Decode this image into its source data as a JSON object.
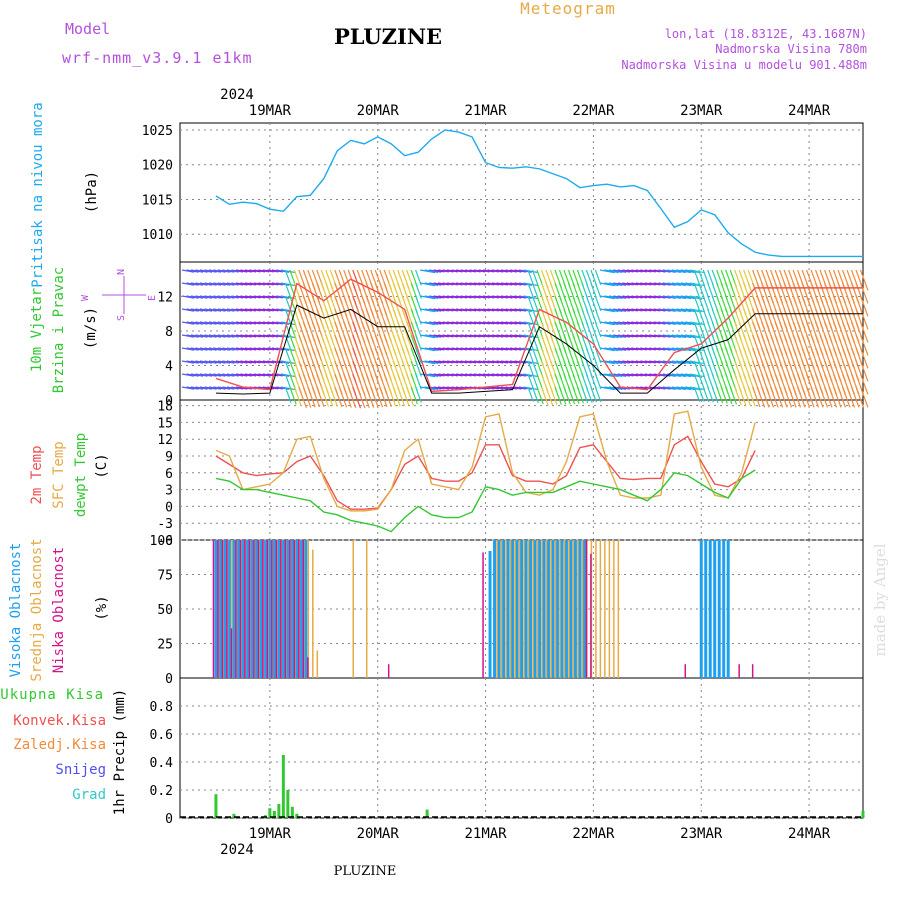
{
  "header": {
    "model_label": "Model",
    "model_name": "wrf-nmm_v3.9.1  e1km",
    "station_title": "PLUZINE",
    "meteogram_label": "Meteogram",
    "coords": "lon,lat (18.8312E, 43.1687N)",
    "elevation": "Nadmorska Visina 780m",
    "model_elevation": "Nadmorska Visina u modelu 901.488m"
  },
  "footer": {
    "station": "PLUZINE",
    "credit": "made by Angel"
  },
  "colors": {
    "pressure": "#1eaaf0",
    "temp2m": "#f05050",
    "sfc_temp": "#e6aa46",
    "dewpoint": "#32c832",
    "cloud_high": "#1ea0f0",
    "cloud_mid": "#e6aa46",
    "cloud_low": "#d2148c",
    "precip_total": "#32c832",
    "precip_convective": "#f05050",
    "precip_frozen": "#f08c3c",
    "snow": "#5050f0",
    "graupel": "#32c8c8",
    "purple_label": "#b450dc"
  },
  "chart_data": [
    {
      "id": "pressure",
      "type": "line",
      "ylabel": "Pritisak na nivou mora",
      "unit": "(hPa)",
      "ylim": [
        1006,
        1026
      ],
      "yticks": [
        1010,
        1015,
        1020,
        1025
      ],
      "grid": true,
      "x_hours": [
        0,
        3,
        6,
        9,
        12,
        15,
        18,
        21,
        24,
        27,
        30,
        33,
        36,
        39,
        42,
        45,
        48,
        51,
        54,
        57,
        60,
        63,
        66,
        69,
        72,
        75,
        78,
        81,
        84,
        87,
        90,
        93,
        96,
        99,
        102,
        105,
        108,
        111,
        114,
        117,
        120,
        123,
        126,
        129,
        132,
        135,
        138,
        141,
        144
      ],
      "series": [
        {
          "name": "Pritisak na nivou mora",
          "values": [
            1015.5,
            1014.3,
            1014.6,
            1014.4,
            1013.6,
            1013.3,
            1015.4,
            1015.6,
            1018.0,
            1022.0,
            1023.5,
            1023.0,
            1024.0,
            1023.0,
            1021.3,
            1021.8,
            1023.7,
            1025.0,
            1024.7,
            1024.0,
            1020.3,
            1019.6,
            1019.5,
            1019.7,
            1019.4,
            1018.7,
            1018.0,
            1016.7,
            1017.0,
            1017.2,
            1016.8,
            1017.0,
            1016.3,
            1013.7,
            1011.0,
            1011.8,
            1013.5,
            1012.8,
            1010.2,
            1008.6,
            1007.4,
            1007.0,
            1006.8,
            1006.8,
            1006.8,
            1006.8,
            1006.8,
            1006.8,
            1006.8
          ]
        }
      ]
    },
    {
      "id": "wind",
      "type": "line",
      "ylabel": "10m Vjetar",
      "ylabel2": "Brzina i Pravac",
      "unit": "(m/s)",
      "ylim": [
        0,
        16
      ],
      "yticks": [
        0,
        4,
        8,
        12
      ],
      "grid": true,
      "compass": {
        "n": "N",
        "s": "S",
        "e": "E",
        "w": "W"
      },
      "x_hours": [
        0,
        6,
        12,
        18,
        24,
        30,
        36,
        42,
        48,
        54,
        60,
        66,
        72,
        78,
        84,
        90,
        96,
        102,
        108,
        114,
        120,
        126,
        132,
        138,
        144
      ],
      "series": [
        {
          "name": "10m brzina vjetra",
          "values": [
            2.5,
            1.5,
            1.2,
            13.5,
            11.5,
            14.0,
            12.5,
            10.5,
            1.0,
            1.2,
            1.5,
            1.8,
            10.5,
            9.0,
            6.5,
            1.5,
            1.2,
            5.5,
            6.5,
            9.5,
            13.0,
            13.0,
            13.0,
            13.0,
            13.0
          ]
        },
        {
          "name": "10m udari vjetra",
          "values": [
            0.8,
            0.7,
            0.8,
            11.0,
            9.5,
            10.5,
            8.5,
            8.5,
            0.8,
            0.8,
            1.0,
            1.2,
            8.5,
            6.5,
            4.0,
            0.8,
            0.8,
            3.5,
            6.0,
            7.0,
            10.0,
            10.0,
            10.0,
            10.0,
            10.0
          ]
        }
      ]
    },
    {
      "id": "temperature",
      "type": "line",
      "ylabel": "2m Temp",
      "ylabel2": "SFC Temp",
      "ylabel3": "dewpt Temp",
      "unit": "(C)",
      "ylim": [
        -6,
        19
      ],
      "yticks": [
        -6,
        -3,
        0,
        3,
        6,
        9,
        12,
        15,
        18
      ],
      "grid": true,
      "x_hours": [
        0,
        3,
        6,
        9,
        12,
        15,
        18,
        21,
        24,
        27,
        30,
        33,
        36,
        39,
        42,
        45,
        48,
        51,
        54,
        57,
        60,
        63,
        66,
        69,
        72,
        75,
        78,
        81,
        84,
        87,
        90,
        93,
        96,
        99,
        102,
        105,
        108,
        111,
        114,
        117,
        120
      ],
      "series": [
        {
          "name": "2m Temp",
          "values": [
            9,
            7.5,
            6,
            5.5,
            5.8,
            6,
            8,
            9,
            5.5,
            1,
            -0.5,
            -0.5,
            -0.3,
            3,
            7.5,
            9,
            5,
            4.5,
            4.5,
            6,
            11,
            11,
            5.5,
            4.5,
            4.5,
            4,
            5.5,
            10.5,
            11,
            8,
            5,
            4.8,
            5,
            5,
            11,
            12.5,
            8,
            4,
            3.5,
            5,
            10
          ]
        },
        {
          "name": "SFC Temp",
          "values": [
            10,
            9,
            3,
            3.5,
            4,
            6,
            12,
            12.5,
            5,
            0,
            -0.8,
            -0.8,
            -0.5,
            3,
            10,
            12,
            4,
            3.5,
            3,
            7,
            16,
            16.5,
            6,
            2.5,
            2,
            3,
            8,
            16,
            16.5,
            8,
            2,
            1.5,
            1.5,
            2,
            16.5,
            17,
            7,
            2,
            1.5,
            6,
            15
          ]
        },
        {
          "name": "dewpt Temp",
          "values": [
            5,
            4.5,
            3,
            3,
            2.5,
            2,
            1.5,
            1,
            -1,
            -1.5,
            -2.5,
            -3,
            -3.5,
            -4.5,
            -2,
            0,
            -1.5,
            -2,
            -2,
            -1,
            3.5,
            3,
            2,
            2.5,
            2.5,
            2.5,
            3.5,
            4.5,
            4,
            3.5,
            3,
            2,
            1,
            3,
            6,
            5.5,
            4,
            2.5,
            1.5,
            5,
            6.5
          ]
        }
      ]
    },
    {
      "id": "cloud",
      "type": "bar",
      "ylabel": "Visoka Oblacnost",
      "ylabel2": "Srednja Oblacnost",
      "ylabel3": "Niska Oblacnost",
      "unit": "(%)",
      "ylim": [
        0,
        100
      ],
      "yticks": [
        0,
        25,
        50,
        75,
        100
      ],
      "grid": true,
      "x_hours": [
        0,
        1,
        2,
        3,
        4,
        5,
        6,
        7,
        8,
        9,
        10,
        11,
        12,
        13,
        14,
        15,
        16,
        17,
        18,
        19,
        20,
        21,
        22,
        23,
        24,
        30,
        33,
        36,
        39,
        42,
        45,
        48,
        51,
        54,
        57,
        60,
        61,
        62,
        63,
        64,
        65,
        66,
        67,
        68,
        69,
        70,
        71,
        72,
        73,
        74,
        75,
        76,
        77,
        78,
        79,
        80,
        81,
        82,
        83,
        84,
        85,
        86,
        87,
        88,
        89,
        90,
        93,
        96,
        99,
        102,
        105,
        108,
        109,
        110,
        111,
        112,
        113,
        114,
        117,
        120
      ],
      "series": [
        {
          "name": "Visoka Oblacnost",
          "values": [
            100,
            100,
            100,
            100,
            100,
            100,
            100,
            100,
            100,
            100,
            100,
            100,
            100,
            100,
            100,
            100,
            100,
            100,
            100,
            100,
            100,
            0,
            0,
            0,
            0,
            0,
            0,
            0,
            0,
            0,
            0,
            0,
            0,
            0,
            0,
            0,
            92,
            100,
            100,
            100,
            100,
            100,
            100,
            100,
            100,
            100,
            100,
            100,
            100,
            100,
            100,
            100,
            100,
            100,
            100,
            100,
            100,
            100,
            0,
            0,
            0,
            0,
            0,
            0,
            0,
            0,
            0,
            0,
            0,
            0,
            0,
            100,
            100,
            100,
            100,
            100,
            100,
            100,
            0,
            0
          ]
        },
        {
          "name": "Srednja Oblacnost",
          "values": [
            100,
            100,
            100,
            100,
            100,
            100,
            100,
            100,
            100,
            100,
            100,
            100,
            100,
            100,
            100,
            100,
            100,
            100,
            100,
            100,
            100,
            93,
            20,
            0,
            0,
            100,
            100,
            0,
            0,
            0,
            0,
            0,
            0,
            0,
            0,
            0,
            0,
            100,
            100,
            100,
            100,
            100,
            100,
            100,
            100,
            100,
            100,
            100,
            100,
            100,
            100,
            100,
            100,
            100,
            100,
            100,
            100,
            100,
            100,
            100,
            100,
            100,
            100,
            100,
            100,
            0,
            0,
            0,
            0,
            0,
            0,
            0,
            0,
            0,
            0,
            0,
            0,
            0,
            0,
            0
          ]
        },
        {
          "name": "Niska Oblacnost",
          "values": [
            100,
            100,
            100,
            100,
            36,
            100,
            100,
            100,
            100,
            100,
            100,
            100,
            100,
            100,
            100,
            100,
            100,
            100,
            100,
            100,
            100,
            15,
            0,
            0,
            0,
            0,
            0,
            0,
            10,
            0,
            0,
            0,
            0,
            0,
            0,
            91,
            0,
            0,
            0,
            0,
            0,
            0,
            0,
            0,
            0,
            0,
            0,
            0,
            0,
            0,
            0,
            0,
            0,
            0,
            0,
            0,
            0,
            0,
            100,
            90,
            0,
            0,
            0,
            0,
            0,
            0,
            0,
            0,
            0,
            0,
            10,
            0,
            0,
            0,
            0,
            0,
            0,
            0,
            10,
            10
          ]
        }
      ]
    },
    {
      "id": "precip",
      "type": "bar",
      "ylabel": "1hr Precip",
      "unit": "(mm)",
      "ylim": [
        0,
        1.0
      ],
      "yticks": [
        0,
        0.2,
        0.4,
        0.6,
        0.8
      ],
      "grid": true,
      "legend": [
        "Ukupna Kisa",
        "Konvek.Kisa",
        "Zaledj.Kisa",
        "Snijeg",
        "Grad"
      ],
      "x_hours": [
        0,
        4,
        11,
        12,
        13,
        14,
        15,
        16,
        17,
        18,
        47,
        144
      ],
      "series": [
        {
          "name": "Ukupna Kisa",
          "values": [
            0.17,
            0.03,
            0.02,
            0.07,
            0.05,
            0.1,
            0.45,
            0.2,
            0.08,
            0.03,
            0.06,
            0.05
          ]
        }
      ]
    }
  ],
  "x_axis": {
    "day_labels": [
      "19MAR",
      "20MAR",
      "21MAR",
      "22MAR",
      "23MAR",
      "24MAR"
    ],
    "day_hours": [
      12,
      36,
      60,
      84,
      108,
      132
    ],
    "year_label": "2024"
  }
}
